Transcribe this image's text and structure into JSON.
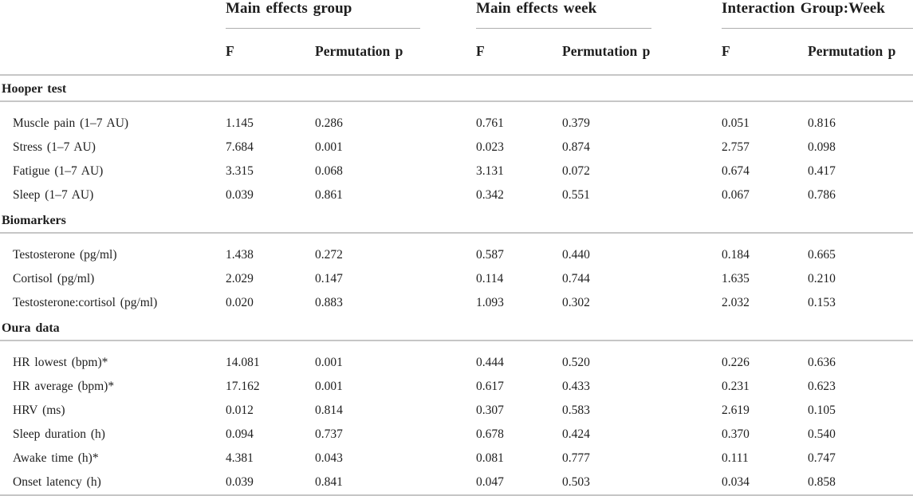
{
  "table": {
    "column_groups": [
      {
        "label": "Main effects group",
        "subcolumns": [
          "F",
          "Permutation p"
        ]
      },
      {
        "label": "Main effects week",
        "subcolumns": [
          "F",
          "Permutation p"
        ]
      },
      {
        "label": "Interaction Group:Week",
        "subcolumns": [
          "F",
          "Permutation p"
        ]
      }
    ],
    "sections": [
      {
        "header": "Hooper test",
        "rows": [
          {
            "label": "Muscle pain (1–7 AU)",
            "values": [
              "1.145",
              "0.286",
              "0.761",
              "0.379",
              "0.051",
              "0.816"
            ]
          },
          {
            "label": "Stress (1–7 AU)",
            "values": [
              "7.684",
              "0.001",
              "0.023",
              "0.874",
              "2.757",
              "0.098"
            ]
          },
          {
            "label": "Fatigue (1–7 AU)",
            "values": [
              "3.315",
              "0.068",
              "3.131",
              "0.072",
              "0.674",
              "0.417"
            ]
          },
          {
            "label": "Sleep (1–7 AU)",
            "values": [
              "0.039",
              "0.861",
              "0.342",
              "0.551",
              "0.067",
              "0.786"
            ]
          }
        ]
      },
      {
        "header": "Biomarkers",
        "rows": [
          {
            "label": "Testosterone (pg/ml)",
            "values": [
              "1.438",
              "0.272",
              "0.587",
              "0.440",
              "0.184",
              "0.665"
            ]
          },
          {
            "label": "Cortisol (pg/ml)",
            "values": [
              "2.029",
              "0.147",
              "0.114",
              "0.744",
              "1.635",
              "0.210"
            ]
          },
          {
            "label": "Testosterone:cortisol (pg/ml)",
            "values": [
              "0.020",
              "0.883",
              "1.093",
              "0.302",
              "2.032",
              "0.153"
            ]
          }
        ]
      },
      {
        "header": "Oura data",
        "rows": [
          {
            "label": "HR lowest (bpm)*",
            "values": [
              "14.081",
              "0.001",
              "0.444",
              "0.520",
              "0.226",
              "0.636"
            ]
          },
          {
            "label": "HR average (bpm)*",
            "values": [
              "17.162",
              "0.001",
              "0.617",
              "0.433",
              "0.231",
              "0.623"
            ]
          },
          {
            "label": "HRV (ms)",
            "values": [
              "0.012",
              "0.814",
              "0.307",
              "0.583",
              "2.619",
              "0.105"
            ]
          },
          {
            "label": "Sleep duration (h)",
            "values": [
              "0.094",
              "0.737",
              "0.678",
              "0.424",
              "0.370",
              "0.540"
            ]
          },
          {
            "label": "Awake time (h)*",
            "values": [
              "4.381",
              "0.043",
              "0.081",
              "0.777",
              "0.111",
              "0.747"
            ]
          },
          {
            "label": "Onset latency (h)",
            "values": [
              "0.039",
              "0.841",
              "0.047",
              "0.503",
              "0.034",
              "0.858"
            ]
          }
        ]
      }
    ]
  },
  "colors": {
    "text": "#1e1e1e",
    "rule": "#c6c6c6",
    "group_underline": "#adadad",
    "background": "#ffffff"
  }
}
